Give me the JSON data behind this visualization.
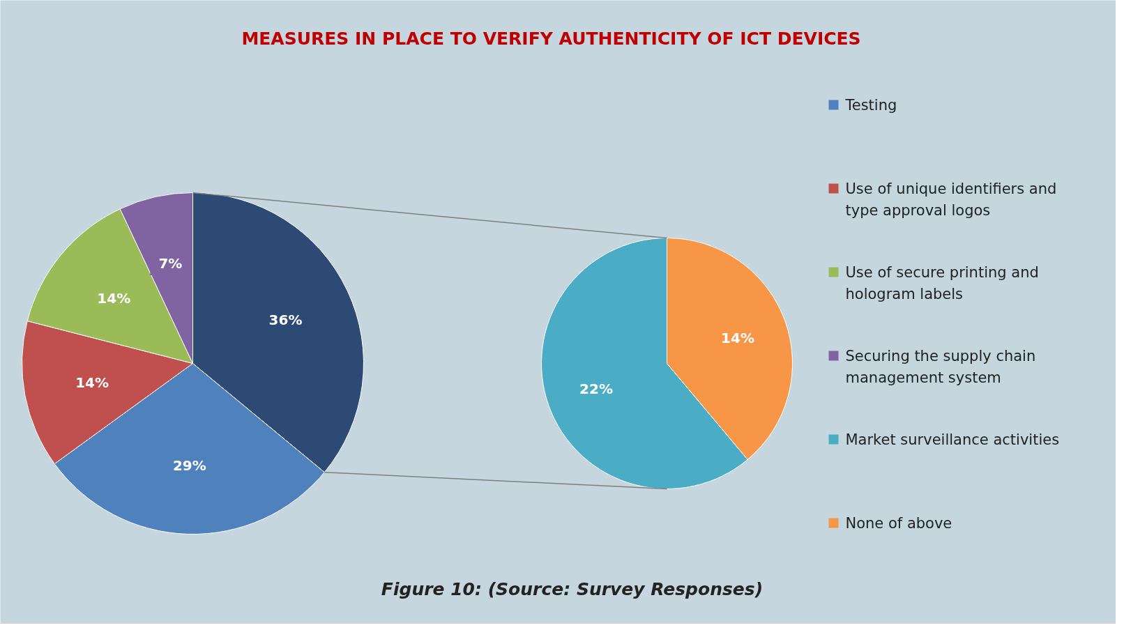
{
  "chart_data": [
    {
      "type": "pie",
      "title": "MEASURES IN PLACE TO VERIFY AUTHENTICITY OF ICT DEVICES",
      "categories": [
        "Testing",
        "Use of unique identifiers and type approval logos",
        "Use of secure printing and hologram labels",
        "Securing the supply chain management system",
        null
      ],
      "values": [
        29,
        14,
        14,
        7,
        36
      ],
      "colors": [
        "#4f81bd",
        "#c0504d",
        "#9bbb59",
        "#8064a2",
        "#2c4a74"
      ],
      "value_labels": [
        "29%",
        "14%",
        "14%",
        "7%",
        "36%"
      ],
      "legend": "right",
      "annotations": [
        "Figure 10: (Source: Survey Responses)"
      ]
    },
    {
      "type": "pie",
      "categories": [
        "Market surveillance activities",
        "None of above"
      ],
      "values": [
        22,
        14
      ],
      "colors": [
        "#4bacc6",
        "#f79646"
      ],
      "value_labels": [
        "22%",
        "14%"
      ],
      "legend": "right"
    }
  ]
}
